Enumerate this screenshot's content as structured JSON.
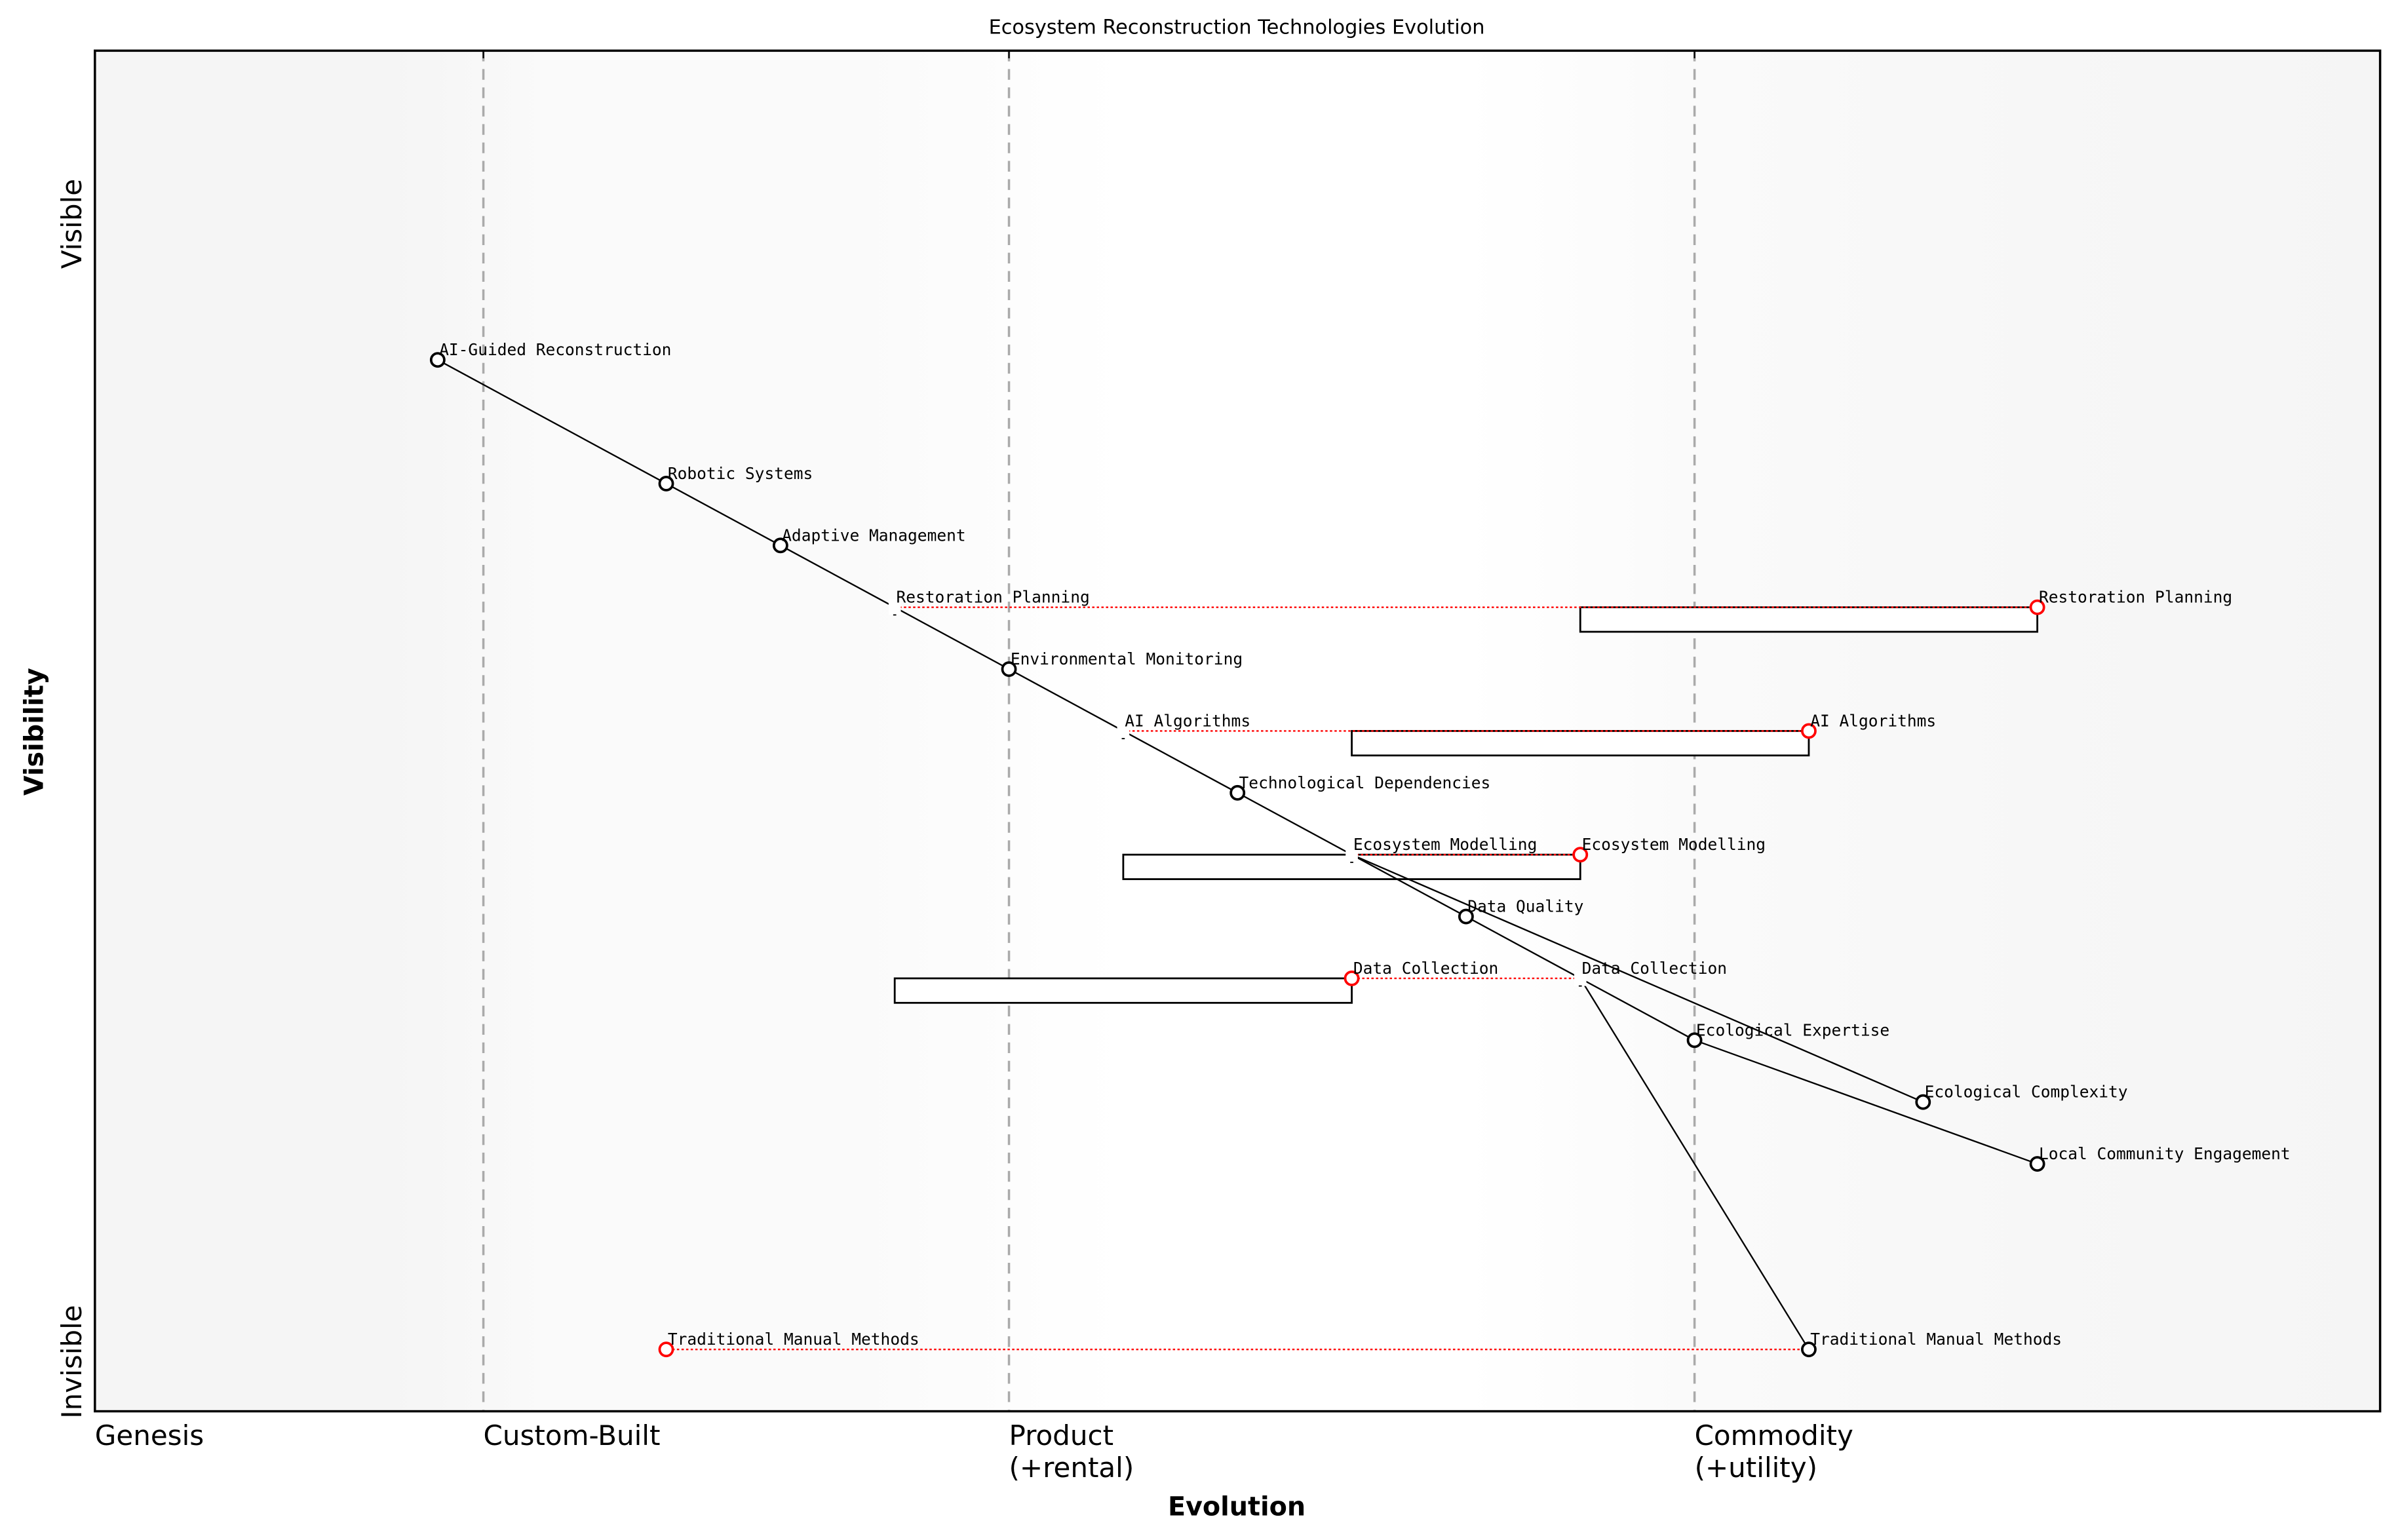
{
  "title": "Ecosystem Reconstruction Technologies Evolution",
  "x_axis": {
    "label": "Evolution",
    "range": [
      0,
      1
    ],
    "stages": [
      {
        "label": "Genesis",
        "value": 0
      },
      {
        "label": "Custom-Built",
        "value": 0.17
      },
      {
        "label": "Product\n(+rental)",
        "value": 0.4
      },
      {
        "label": "Commodity\n(+utility)",
        "value": 0.7
      }
    ]
  },
  "y_axis": {
    "label": "Visibility",
    "range": [
      0.1,
      1.2
    ],
    "ticks": [
      {
        "label": "Invisible",
        "value": 0.14
      },
      {
        "label": "Visible",
        "value": 1.06
      }
    ]
  },
  "colors": {
    "component": "#000000",
    "evolved": "#ff0000",
    "stage_line": "#aaaaaa"
  },
  "components": [
    {
      "name": "AI-Guided Reconstruction",
      "evolution": 0.15,
      "visibility": 0.95
    },
    {
      "name": "Robotic Systems",
      "evolution": 0.25,
      "visibility": 0.85
    },
    {
      "name": "Adaptive Management",
      "evolution": 0.3,
      "visibility": 0.8
    },
    {
      "name": "Restoration Planning",
      "evolution": 0.35,
      "visibility": 0.75,
      "pipeline": [
        0.65,
        0.85
      ]
    },
    {
      "name": "Environmental Monitoring",
      "evolution": 0.4,
      "visibility": 0.7
    },
    {
      "name": "AI Algorithms",
      "evolution": 0.45,
      "visibility": 0.65,
      "pipeline": [
        0.55,
        0.75
      ]
    },
    {
      "name": "Technological Dependencies",
      "evolution": 0.5,
      "visibility": 0.6
    },
    {
      "name": "Ecosystem Modelling",
      "evolution": 0.55,
      "visibility": 0.55,
      "pipeline": [
        0.45,
        0.65
      ]
    },
    {
      "name": "Data Quality",
      "evolution": 0.6,
      "visibility": 0.5
    },
    {
      "name": "Data Collection",
      "evolution": 0.65,
      "visibility": 0.45,
      "pipeline": [
        0.35,
        0.55
      ]
    },
    {
      "name": "Ecological Expertise",
      "evolution": 0.7,
      "visibility": 0.4
    },
    {
      "name": "Ecological Complexity",
      "evolution": 0.8,
      "visibility": 0.35
    },
    {
      "name": "Local Community Engagement",
      "evolution": 0.85,
      "visibility": 0.3
    },
    {
      "name": "Traditional Manual Methods",
      "evolution": 0.75,
      "visibility": 0.15
    }
  ],
  "evolved": [
    {
      "name": "Restoration Planning",
      "evolution": 0.85,
      "visibility": 0.75
    },
    {
      "name": "AI Algorithms",
      "evolution": 0.75,
      "visibility": 0.65
    },
    {
      "name": "Ecosystem Modelling",
      "evolution": 0.65,
      "visibility": 0.55
    },
    {
      "name": "Data Collection",
      "evolution": 0.55,
      "visibility": 0.45
    },
    {
      "name": "Traditional Manual Methods",
      "evolution": 0.25,
      "visibility": 0.15
    }
  ],
  "links": [
    [
      "AI-Guided Reconstruction",
      "Robotic Systems"
    ],
    [
      "Robotic Systems",
      "Adaptive Management"
    ],
    [
      "Adaptive Management",
      "Restoration Planning"
    ],
    [
      "Restoration Planning",
      "Environmental Monitoring"
    ],
    [
      "Environmental Monitoring",
      "AI Algorithms"
    ],
    [
      "AI Algorithms",
      "Technological Dependencies"
    ],
    [
      "Technological Dependencies",
      "Ecosystem Modelling"
    ],
    [
      "Ecosystem Modelling",
      "Data Quality"
    ],
    [
      "Ecosystem Modelling",
      "Ecological Complexity"
    ],
    [
      "Data Quality",
      "Data Collection"
    ],
    [
      "Data Collection",
      "Ecological Expertise"
    ],
    [
      "Data Collection",
      "Traditional Manual Methods"
    ],
    [
      "Ecological Expertise",
      "Local Community Engagement"
    ]
  ]
}
